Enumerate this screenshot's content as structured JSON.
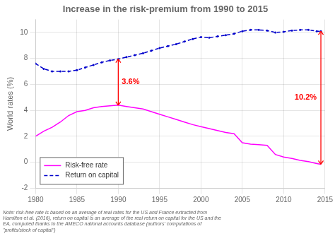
{
  "chart_data": {
    "type": "line",
    "title": "Increase in the risk-premium from 1990 to 2015",
    "ylabel": "World rates (%)",
    "xlim": [
      1980,
      2015
    ],
    "ylim": [
      -2,
      11
    ],
    "xticks": [
      1980,
      1985,
      1990,
      1995,
      2000,
      2005,
      2010,
      2015
    ],
    "yticks": [
      -2,
      0,
      2,
      4,
      6,
      8,
      10
    ],
    "grid": true,
    "legend": "lower left",
    "x": [
      1980,
      1981,
      1982,
      1983,
      1984,
      1985,
      1986,
      1987,
      1988,
      1989,
      1990,
      1991,
      1992,
      1993,
      1994,
      1995,
      1996,
      1997,
      1998,
      1999,
      2000,
      2001,
      2002,
      2003,
      2004,
      2005,
      2006,
      2007,
      2008,
      2009,
      2010,
      2011,
      2012,
      2013,
      2014,
      2014.5
    ],
    "series": [
      {
        "name": "Risk-free rate",
        "color": "#FF00FF",
        "line_style": "solid",
        "values": [
          2.0,
          2.4,
          2.7,
          3.1,
          3.6,
          3.9,
          4.0,
          4.2,
          4.3,
          4.35,
          4.4,
          4.3,
          4.2,
          4.1,
          3.9,
          3.7,
          3.5,
          3.3,
          3.1,
          2.9,
          2.75,
          2.6,
          2.45,
          2.3,
          2.2,
          1.5,
          1.4,
          1.35,
          1.3,
          0.6,
          0.4,
          0.3,
          0.15,
          0.05,
          -0.1,
          -0.15
        ]
      },
      {
        "name": "Return on capital",
        "color": "#0000CC",
        "line_style": "dashed",
        "marker": "dot",
        "values": [
          7.6,
          7.2,
          7.0,
          7.0,
          7.0,
          7.1,
          7.3,
          7.5,
          7.7,
          7.85,
          7.95,
          8.1,
          8.25,
          8.4,
          8.6,
          8.8,
          8.95,
          9.1,
          9.3,
          9.5,
          9.65,
          9.6,
          9.7,
          9.8,
          9.9,
          10.1,
          10.2,
          10.2,
          10.15,
          10.0,
          10.05,
          10.15,
          10.2,
          10.2,
          10.1,
          10.1
        ]
      }
    ],
    "annotations": [
      {
        "text": "3.6%",
        "x": 1990,
        "y_from": 4.4,
        "y_to": 7.95,
        "color": "red"
      },
      {
        "text": "10.2%",
        "x": 2014.5,
        "y_from": -0.15,
        "y_to": 10.1,
        "color": "red"
      }
    ],
    "note": "Note: risk-free rate is based on an average of real rates for the US and France extracted from\nHamilton et al. (2016), return on capital is an average of the real return on capital for the US and the\nEA, computed thanks to the AMECO national accounts database (authors' computations of\n\"profits/stock of capital\")"
  }
}
